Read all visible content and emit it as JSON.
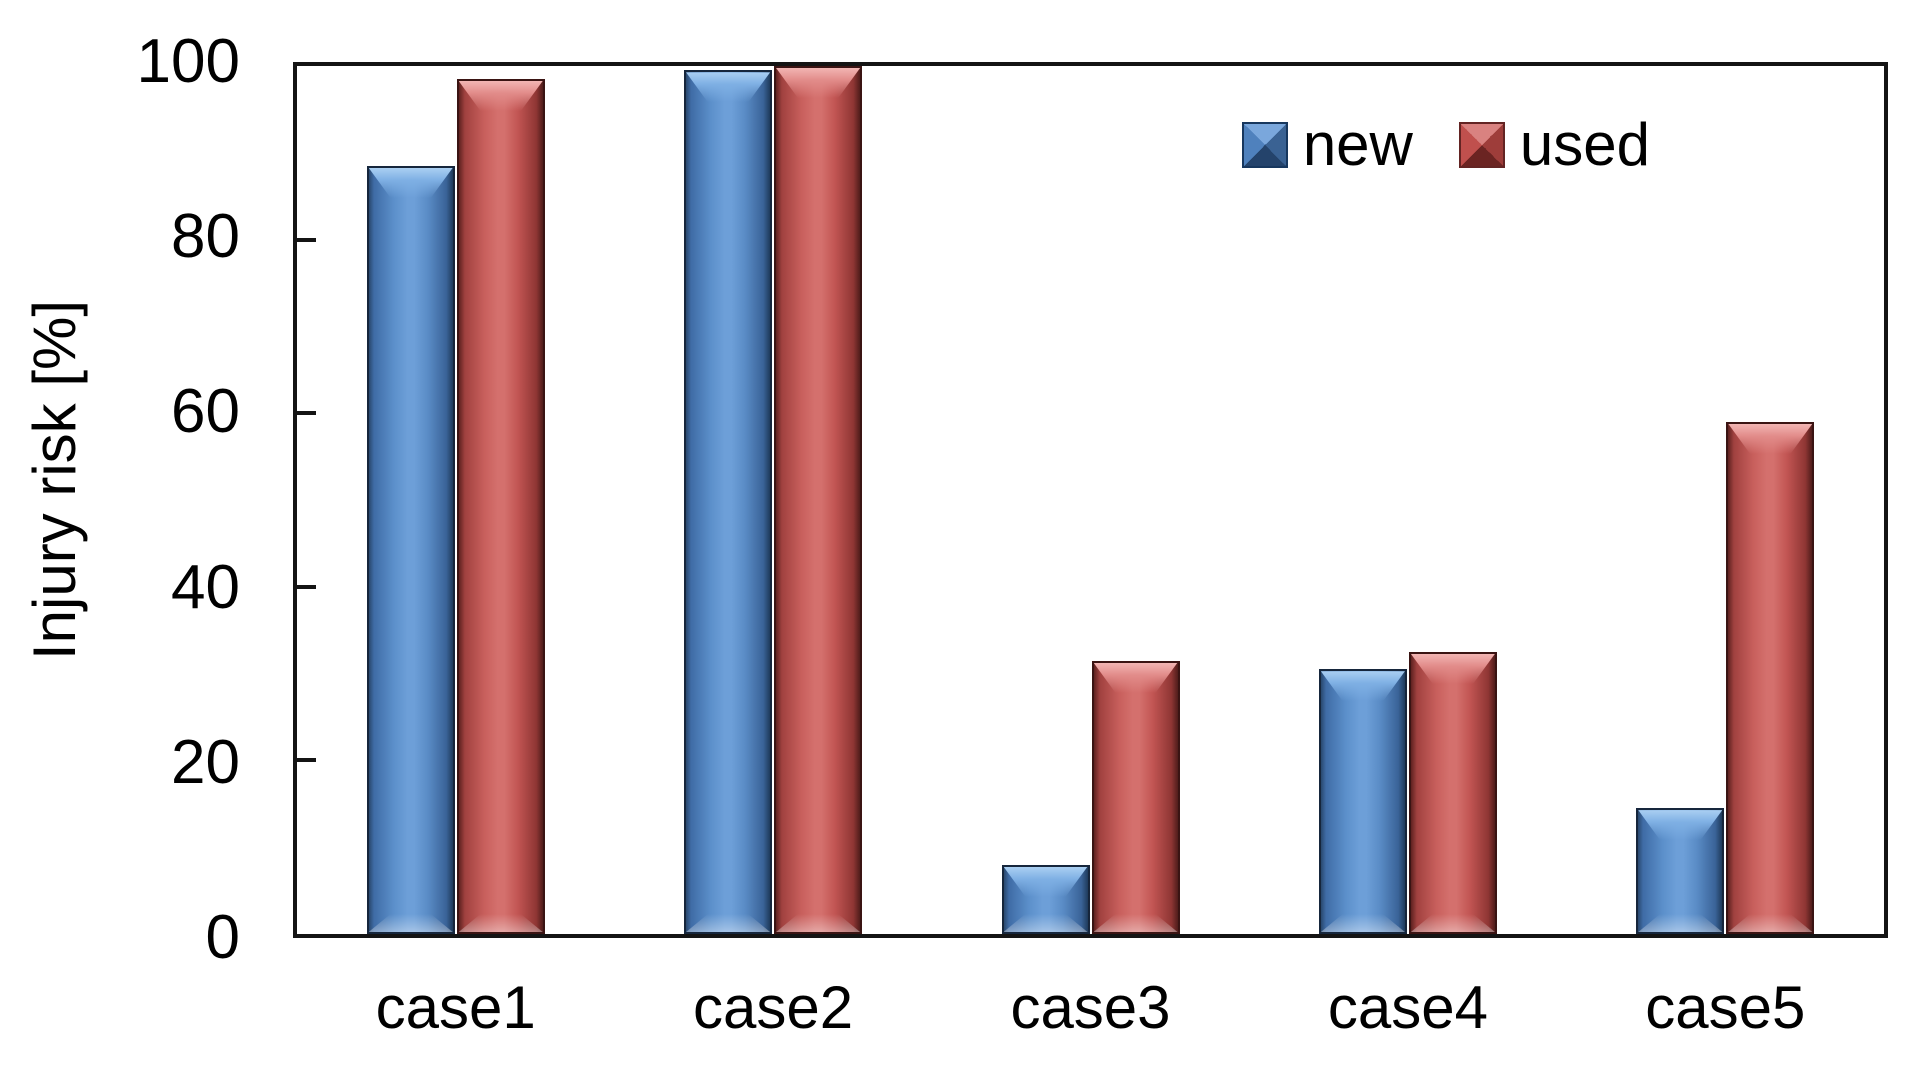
{
  "chart_data": {
    "type": "bar",
    "title": "",
    "xlabel": "",
    "ylabel": "Injury risk [%]",
    "ylim": [
      0,
      100
    ],
    "yticks": [
      0,
      20,
      40,
      60,
      80,
      100
    ],
    "grid": false,
    "legend_position": "top-right",
    "categories": [
      "case1",
      "case2",
      "case3",
      "case4",
      "case5"
    ],
    "series": [
      {
        "name": "new",
        "color": "#4F81BD",
        "values": [
          88.5,
          99.5,
          8,
          30.5,
          14.5
        ]
      },
      {
        "name": "used",
        "color": "#C0504D",
        "values": [
          98.5,
          100,
          31.5,
          32.5,
          59
        ]
      }
    ]
  }
}
